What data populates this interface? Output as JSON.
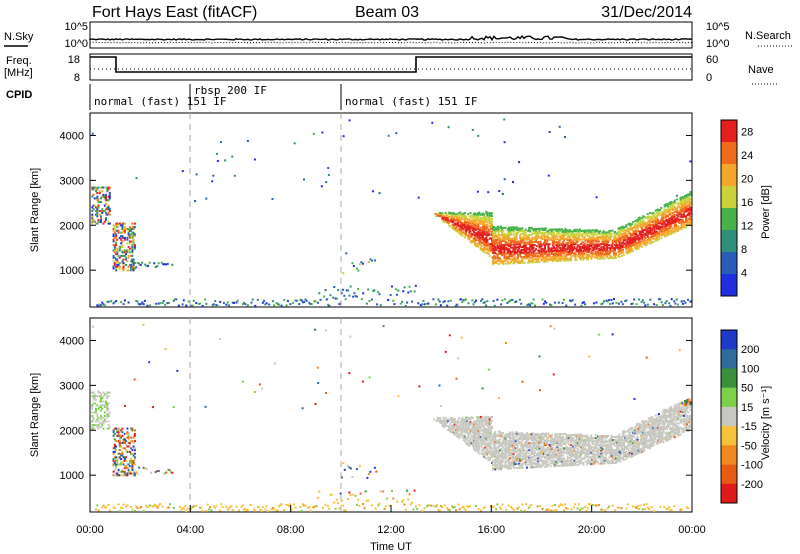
{
  "header": {
    "station": "Fort Hays East (fitACF)",
    "beam": "Beam 03",
    "date": "31/Dec/2014"
  },
  "top_panels": {
    "sky_label": "N.Sky",
    "sky_ticks": [
      "10^5",
      "10^0"
    ],
    "search_label": "N.Search",
    "search_ticks": [
      "10^5",
      "10^0"
    ],
    "freq_label_1": "Freq.",
    "freq_label_2": "[MHz]",
    "freq_ticks": [
      "18",
      "8"
    ],
    "nave_label": "Nave",
    "nave_ticks": [
      "60",
      "0"
    ],
    "cpid_label": "CPID",
    "cpid_segments": [
      "normal (fast) 151 IF",
      "rbsp 200 IF",
      "normal (fast) 151 IF"
    ]
  },
  "chart_data": [
    {
      "type": "heatmap",
      "title": "",
      "ylabel": "Slant Range [km]",
      "xlabel": "",
      "ylim": [
        180,
        4500
      ],
      "y_ticks": [
        "1000",
        "2000",
        "3000",
        "4000"
      ],
      "colorbar_label": "Power [dB]",
      "colorbar_ticks": [
        "4",
        "8",
        "12",
        "16",
        "20",
        "24",
        "28"
      ],
      "colorbar_range": [
        0,
        30
      ],
      "colors": [
        "#1f2fe0",
        "#2a5db8",
        "#2e8f7a",
        "#48b24a",
        "#c9d23a",
        "#f4a72a",
        "#f06a1c",
        "#e4201c"
      ],
      "mode_boundaries_ut": [
        4,
        10
      ]
    },
    {
      "type": "heatmap",
      "title": "",
      "ylabel": "Slant Range [km]",
      "xlabel": "Time UT",
      "ylim": [
        180,
        4500
      ],
      "y_ticks": [
        "1000",
        "2000",
        "3000",
        "4000"
      ],
      "x_ticks": [
        "00:00",
        "04:00",
        "08:00",
        "12:00",
        "16:00",
        "20:00",
        "00:00"
      ],
      "xlim_hours": [
        0,
        24
      ],
      "colorbar_label": "Velocity [m s⁻¹]",
      "colorbar_ticks": [
        "200",
        "100",
        "50",
        "15",
        "-15",
        "-50",
        "-100",
        "-200"
      ],
      "colors": [
        "#1f3ac8",
        "#2f6b9a",
        "#3a8f3a",
        "#7cd04a",
        "#c8c8c0",
        "#f5c23a",
        "#f08a20",
        "#e85a14",
        "#e01a1a"
      ],
      "mode_boundaries_ut": [
        4,
        10
      ]
    }
  ]
}
